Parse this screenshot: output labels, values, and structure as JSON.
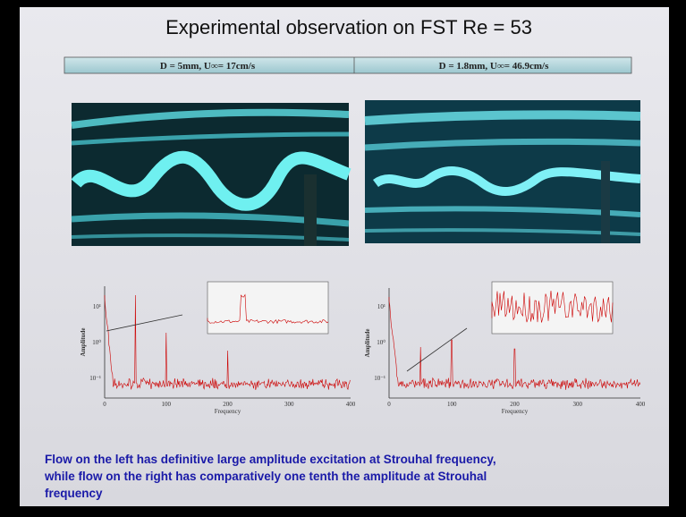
{
  "title": "Experimental observation on FST Re = 53",
  "header": {
    "cells": [
      "D = 5mm, U∞= 17cm/s",
      "D = 1.8mm, U∞= 46.9cm/s"
    ]
  },
  "spectra": [
    {
      "y_label": "Amplitude",
      "x_label": "Frequency",
      "yticks": [
        "10¹",
        "10⁰",
        "10⁻¹"
      ],
      "xticks": [
        "0",
        "100",
        "200",
        "300",
        "400"
      ]
    },
    {
      "y_label": "Amplitude",
      "x_label": "Frequency",
      "yticks": [
        "10¹",
        "10⁰",
        "10⁻¹"
      ],
      "xticks": [
        "0",
        "100",
        "200",
        "300",
        "400"
      ]
    }
  ],
  "caption": [
    "Flow on the left has definitive large amplitude excitation at Strouhal frequency,",
    "while flow on the right has comparatively one tenth the amplitude at Strouhal",
    "frequency"
  ]
}
